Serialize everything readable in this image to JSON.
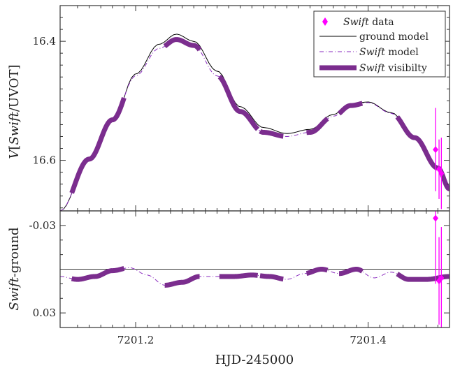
{
  "chart_data": [
    {
      "type": "line",
      "panel": "top",
      "ylabel_prefix": "V",
      "ylabel_bracket_open": "[",
      "ylabel_italic": "Swift",
      "ylabel_rest": "/UVOT]",
      "y_inverted": true,
      "xlim": [
        7201.135,
        7201.47
      ],
      "ylim": [
        16.34,
        16.685
      ],
      "yticks": [
        16.4,
        16.6
      ],
      "ytick_labels": [
        "16.4",
        "16.6"
      ],
      "legend_position": "top-right",
      "legend": [
        {
          "italic": "Swift",
          "text": " data",
          "color": "#ff00ff",
          "marker": "diamond"
        },
        {
          "italic": "",
          "text": "ground model",
          "color": "#000000",
          "style": "solid-thin"
        },
        {
          "italic": "Swift",
          "text": " model",
          "color": "#8a2bbf",
          "style": "dashdot"
        },
        {
          "italic": "Swift",
          "text": " visibilty",
          "color": "#7b2d8e",
          "style": "thick"
        }
      ],
      "series": [
        {
          "role": "ground",
          "x": [
            7201.135,
            7201.16,
            7201.18,
            7201.2,
            7201.22,
            7201.235,
            7201.25,
            7201.27,
            7201.29,
            7201.31,
            7201.33,
            7201.35,
            7201.37,
            7201.385,
            7201.4,
            7201.42,
            7201.44,
            7201.46,
            7201.47
          ],
          "y": [
            16.685,
            16.6,
            16.535,
            16.455,
            16.405,
            16.388,
            16.4,
            16.45,
            16.51,
            16.545,
            16.555,
            16.548,
            16.523,
            16.505,
            16.502,
            16.52,
            16.56,
            16.61,
            16.645
          ]
        },
        {
          "role": "swift",
          "x": [
            7201.135,
            7201.16,
            7201.18,
            7201.2,
            7201.22,
            7201.235,
            7201.25,
            7201.27,
            7201.29,
            7201.31,
            7201.33,
            7201.35,
            7201.37,
            7201.385,
            7201.4,
            7201.42,
            7201.44,
            7201.46,
            7201.47
          ],
          "y": [
            16.685,
            16.598,
            16.532,
            16.458,
            16.412,
            16.397,
            16.407,
            16.458,
            16.518,
            16.553,
            16.56,
            16.553,
            16.526,
            16.508,
            16.503,
            16.521,
            16.562,
            16.613,
            16.648
          ]
        }
      ],
      "visibility_windows": [
        [
          7201.145,
          7201.19
        ],
        [
          7201.225,
          7201.255
        ],
        [
          7201.272,
          7201.305
        ],
        [
          7201.307,
          7201.327
        ],
        [
          7201.347,
          7201.365
        ],
        [
          7201.375,
          7201.395
        ],
        [
          7201.425,
          7201.47
        ]
      ],
      "data_points": [
        {
          "x": 7201.458,
          "y": 16.582,
          "err": 0.07
        },
        {
          "x": 7201.461,
          "y": 16.615,
          "err": 0.05
        },
        {
          "x": 7201.463,
          "y": 16.622,
          "err": 0.06
        }
      ]
    },
    {
      "type": "line",
      "panel": "bottom",
      "ylabel_italic": "Swift",
      "ylabel_rest": "-ground",
      "xlabel": "HJD-245000",
      "y_inverted": true,
      "xlim": [
        7201.135,
        7201.47
      ],
      "ylim": [
        -0.04,
        0.04
      ],
      "yticks": [
        -0.03,
        0.03
      ],
      "ytick_labels": [
        "-0.03",
        "0.03"
      ],
      "xticks": [
        7201.2,
        7201.4
      ],
      "xtick_labels": [
        "7201.2",
        "7201.4"
      ],
      "zero_line": 0,
      "series": [
        {
          "role": "difference",
          "x": [
            7201.135,
            7201.15,
            7201.165,
            7201.18,
            7201.195,
            7201.21,
            7201.225,
            7201.24,
            7201.255,
            7201.27,
            7201.285,
            7201.3,
            7201.315,
            7201.33,
            7201.345,
            7201.36,
            7201.375,
            7201.39,
            7201.405,
            7201.42,
            7201.435,
            7201.45,
            7201.47
          ],
          "y": [
            0.005,
            0.007,
            0.005,
            0.001,
            -0.001,
            0.004,
            0.011,
            0.009,
            0.005,
            0.005,
            0.005,
            0.004,
            0.005,
            0.007,
            0.003,
            0.0,
            0.003,
            0.0,
            0.006,
            0.002,
            0.007,
            0.007,
            0.005
          ]
        }
      ],
      "data_points": [
        {
          "x": 7201.458,
          "y": -0.035,
          "err": 0.045
        },
        {
          "x": 7201.461,
          "y": 0.008,
          "err": 0.03
        },
        {
          "x": 7201.463,
          "y": 0.006,
          "err": 0.035
        }
      ]
    }
  ]
}
